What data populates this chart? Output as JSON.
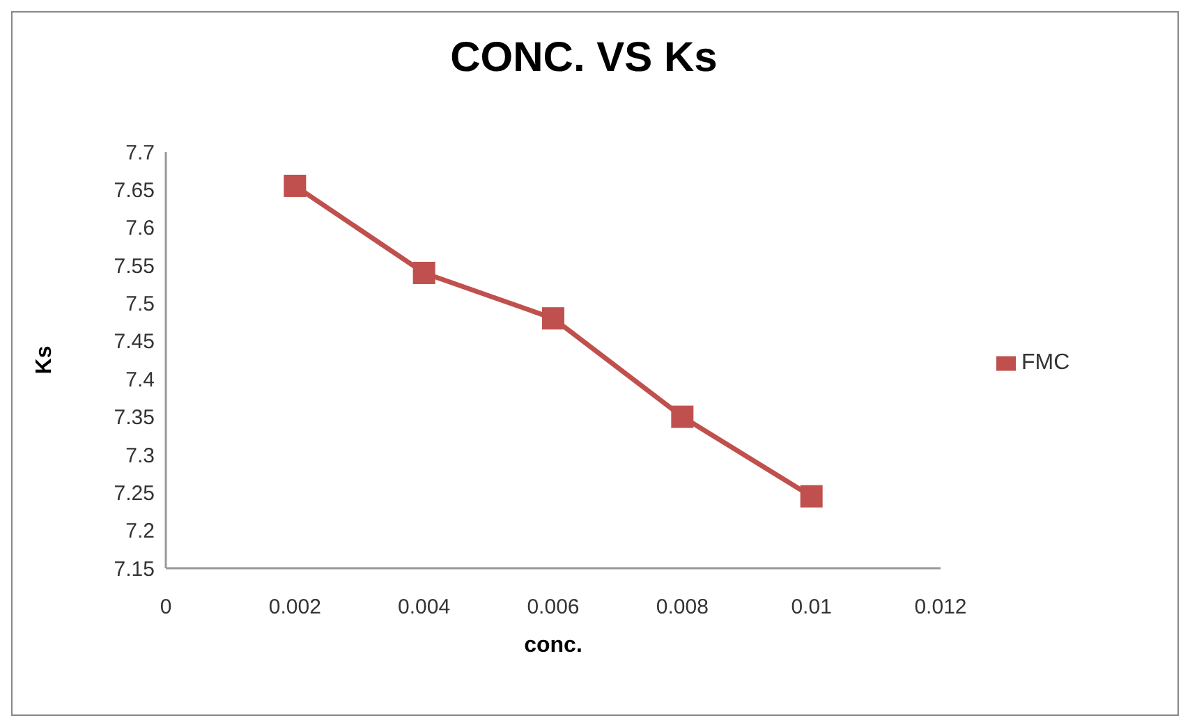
{
  "chart_data": {
    "type": "line",
    "title": "CONC. VS Ks",
    "xlabel": "conc.",
    "ylabel": "Ks",
    "x": [
      0.002,
      0.004,
      0.006,
      0.008,
      0.01
    ],
    "series": [
      {
        "name": "FMC",
        "color": "#c0504d",
        "values": [
          7.655,
          7.54,
          7.48,
          7.35,
          7.245
        ]
      }
    ],
    "xlim": [
      0,
      0.012
    ],
    "xticks": [
      0,
      0.002,
      0.004,
      0.006,
      0.008,
      0.01,
      0.012
    ],
    "ylim": [
      7.15,
      7.7
    ],
    "yticks": [
      7.15,
      7.2,
      7.25,
      7.3,
      7.35,
      7.4,
      7.45,
      7.5,
      7.55,
      7.6,
      7.65,
      7.7
    ],
    "grid": false,
    "legend": "right",
    "marker": "square",
    "line_style": "solid"
  }
}
